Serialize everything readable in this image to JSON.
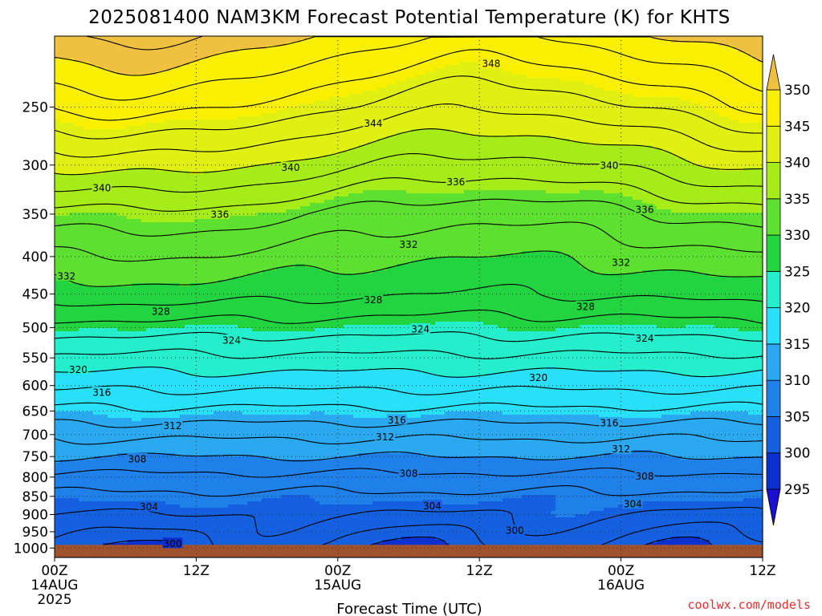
{
  "chart_data": {
    "type": "heatmap",
    "title": "2025081400 NAM3KM Forecast Potential Temperature (K) for KHTS",
    "xlabel": "Forecast Time (UTC)",
    "ylabel": "",
    "credit": "coolwx.com/models",
    "x_range_hours": [
      0,
      60
    ],
    "x_ticks": [
      {
        "hour": 0,
        "lines": [
          "00Z",
          "14AUG",
          "2025"
        ]
      },
      {
        "hour": 12,
        "lines": [
          "12Z"
        ]
      },
      {
        "hour": 24,
        "lines": [
          "00Z",
          "15AUG"
        ]
      },
      {
        "hour": 36,
        "lines": [
          "12Z"
        ]
      },
      {
        "hour": 48,
        "lines": [
          "00Z",
          "16AUG"
        ]
      },
      {
        "hour": 60,
        "lines": [
          "12Z"
        ]
      }
    ],
    "y_axis": "pressure (hPa), log scale, inverted",
    "y_range": [
      1030,
      200
    ],
    "y_ticks": [
      250,
      300,
      350,
      400,
      450,
      500,
      550,
      600,
      650,
      700,
      750,
      800,
      850,
      900,
      950,
      1000
    ],
    "grid": true,
    "ground_level_hPa": 990,
    "colorbar": {
      "levels": [
        295,
        300,
        305,
        310,
        315,
        320,
        325,
        330,
        335,
        340,
        345,
        350
      ],
      "labels": [
        "295",
        "300",
        "305",
        "310",
        "315",
        "320",
        "325",
        "330",
        "335",
        "340",
        "345",
        "350"
      ],
      "colors": [
        "#2020e8",
        "#0a30d0",
        "#1560e0",
        "#1e80e8",
        "#2aa8f0",
        "#28e0f8",
        "#24eecb",
        "#22d440",
        "#5ee030",
        "#a6ec18",
        "#e0f010",
        "#f8f000",
        "#f0c020"
      ],
      "under_color": "#1a10d0",
      "over_color": "#f0c040"
    },
    "ground_color": "#a0522d",
    "isentrope_profile": {
      "pressure_hPa": [
        1000,
        950,
        900,
        850,
        800,
        750,
        700,
        650,
        600,
        550,
        500,
        450,
        400,
        350,
        300,
        250,
        200
      ],
      "theta_K": [
        301,
        302.5,
        304,
        305.5,
        307.5,
        310,
        312.5,
        315.5,
        318.5,
        321.5,
        325,
        328.5,
        331,
        334,
        339,
        344.5,
        350
      ]
    },
    "contour_labels": [
      {
        "text": "348",
        "hour": 37,
        "p": 218
      },
      {
        "text": "344",
        "hour": 27,
        "p": 263
      },
      {
        "text": "340",
        "hour": 20,
        "p": 302
      },
      {
        "text": "340",
        "hour": 4,
        "p": 322
      },
      {
        "text": "340",
        "hour": 47,
        "p": 300
      },
      {
        "text": "336",
        "hour": 34,
        "p": 316
      },
      {
        "text": "336",
        "hour": 14,
        "p": 350
      },
      {
        "text": "336",
        "hour": 50,
        "p": 345
      },
      {
        "text": "332",
        "hour": 30,
        "p": 385
      },
      {
        "text": "332",
        "hour": 48,
        "p": 407
      },
      {
        "text": "332",
        "hour": 1,
        "p": 425
      },
      {
        "text": "328",
        "hour": 27,
        "p": 458
      },
      {
        "text": "328",
        "hour": 9,
        "p": 475
      },
      {
        "text": "328",
        "hour": 45,
        "p": 468
      },
      {
        "text": "324",
        "hour": 31,
        "p": 502
      },
      {
        "text": "324",
        "hour": 15,
        "p": 520
      },
      {
        "text": "324",
        "hour": 50,
        "p": 517
      },
      {
        "text": "320",
        "hour": 2,
        "p": 570
      },
      {
        "text": "320",
        "hour": 41,
        "p": 585
      },
      {
        "text": "316",
        "hour": 4,
        "p": 613
      },
      {
        "text": "316",
        "hour": 29,
        "p": 668
      },
      {
        "text": "316",
        "hour": 47,
        "p": 674
      },
      {
        "text": "312",
        "hour": 10,
        "p": 680
      },
      {
        "text": "312",
        "hour": 28,
        "p": 705
      },
      {
        "text": "312",
        "hour": 48,
        "p": 732
      },
      {
        "text": "308",
        "hour": 7,
        "p": 755
      },
      {
        "text": "308",
        "hour": 30,
        "p": 790
      },
      {
        "text": "308",
        "hour": 50,
        "p": 797
      },
      {
        "text": "304",
        "hour": 8,
        "p": 878
      },
      {
        "text": "304",
        "hour": 32,
        "p": 875
      },
      {
        "text": "304",
        "hour": 49,
        "p": 870
      },
      {
        "text": "300",
        "hour": 10,
        "p": 985
      },
      {
        "text": "300",
        "hour": 39,
        "p": 945
      }
    ]
  }
}
